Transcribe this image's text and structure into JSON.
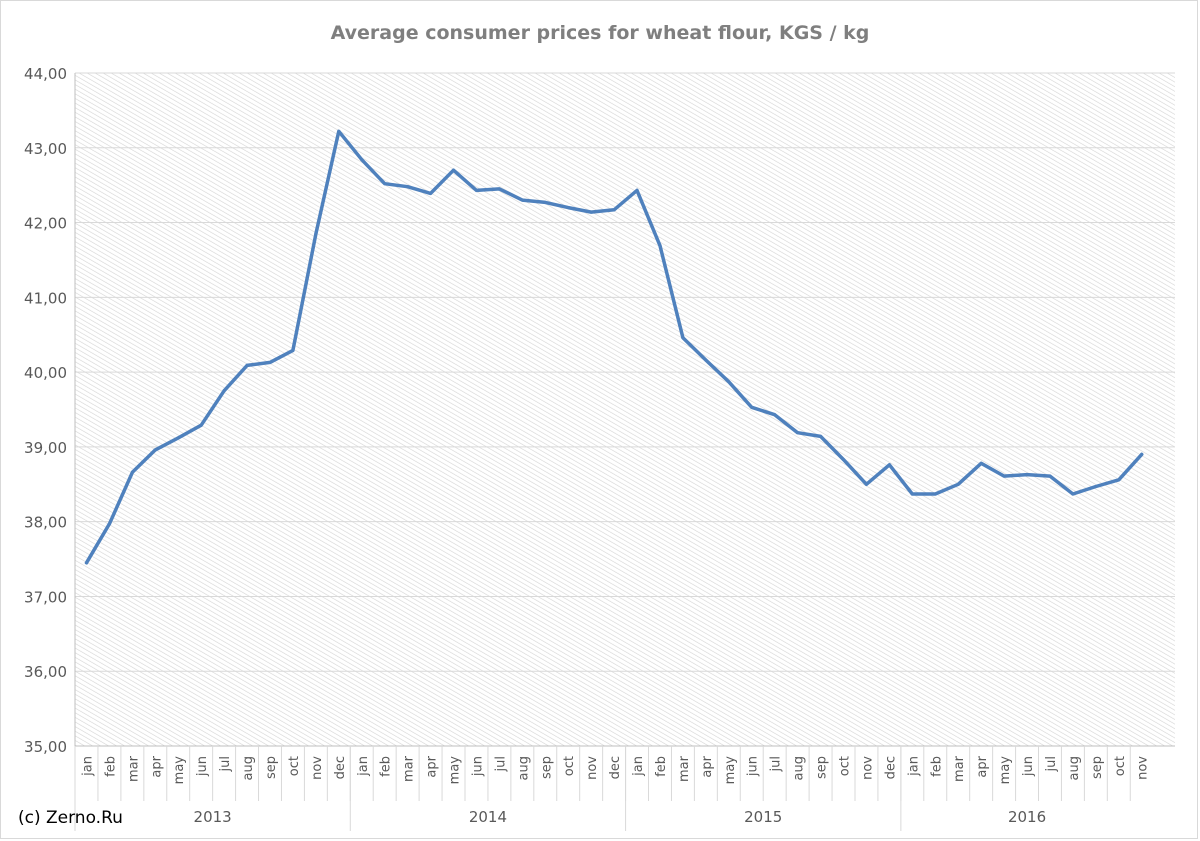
{
  "chart_data": {
    "type": "line",
    "title": "Average consumer prices for wheat flour, KGS / kg",
    "xlabel": "",
    "ylabel": "",
    "ylim": [
      35,
      44
    ],
    "yticks": [
      "35,00",
      "36,00",
      "37,00",
      "38,00",
      "39,00",
      "40,00",
      "41,00",
      "42,00",
      "43,00",
      "44,00"
    ],
    "grid": true,
    "legend": "none",
    "series_color": "#4f81bd",
    "years": [
      {
        "label": "2013",
        "months": [
          "jan",
          "feb",
          "mar",
          "apr",
          "may",
          "jun",
          "jul",
          "aug",
          "sep",
          "oct",
          "nov",
          "dec"
        ]
      },
      {
        "label": "2014",
        "months": [
          "jan",
          "feb",
          "mar",
          "apr",
          "may",
          "jun",
          "jul",
          "aug",
          "sep",
          "oct",
          "nov",
          "dec"
        ]
      },
      {
        "label": "2015",
        "months": [
          "jan",
          "feb",
          "mar",
          "apr",
          "may",
          "jun",
          "jul",
          "aug",
          "sep",
          "oct",
          "nov",
          "dec"
        ]
      },
      {
        "label": "2016",
        "months": [
          "jan",
          "feb",
          "mar",
          "apr",
          "may",
          "jun",
          "jul",
          "aug",
          "sep",
          "oct",
          "nov"
        ]
      }
    ],
    "values": [
      37.45,
      37.97,
      38.66,
      38.96,
      39.12,
      39.29,
      39.75,
      40.09,
      40.13,
      40.29,
      41.85,
      43.22,
      42.84,
      42.52,
      42.48,
      42.39,
      42.7,
      42.43,
      42.45,
      42.3,
      42.27,
      42.2,
      42.14,
      42.17,
      42.43,
      41.69,
      40.46,
      40.16,
      39.87,
      39.53,
      39.43,
      39.19,
      39.14,
      38.83,
      38.5,
      38.76,
      38.37,
      38.37,
      38.5,
      38.78,
      38.61,
      38.63,
      38.61,
      38.37,
      38.47,
      38.56,
      38.9
    ]
  },
  "credit": "(c) Zerno.Ru"
}
